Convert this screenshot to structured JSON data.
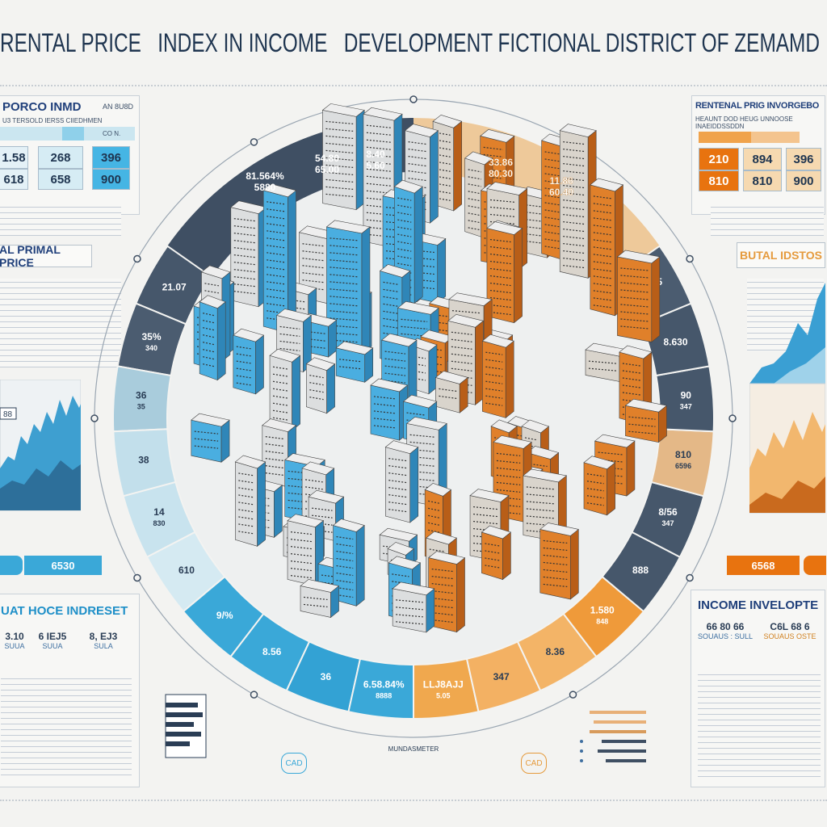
{
  "title": "RENTAL PRICE   INDEX IN INCOME   DEVELOPMENT FICTIONAL DISTRICT OF ZEMAMD",
  "colors": {
    "navy": "#3f4f63",
    "blue": "#3aa8d8",
    "light_blue": "#b9dcea",
    "orange": "#ef9a3a",
    "tan": "#e9c18c",
    "dark_orange": "#d86a1a",
    "text": "#1f3550"
  },
  "left_top_panel": {
    "title": "PORCO INMD",
    "tag": "AN 8U8D",
    "subtitle": "U3 TERSOLD IERSS CIIEDHMEN",
    "header_tag": "CO N.",
    "cells": [
      [
        "1.58",
        "618"
      ],
      [
        "268",
        "658"
      ],
      [
        "396",
        "900"
      ]
    ]
  },
  "left_mid_label": "AL PRIMAL PRICE",
  "left_chart_tag": "88",
  "left_button": "6530",
  "left_bottom_panel": {
    "title": "UAT HOCE INDRESET",
    "stats": [
      {
        "value": "3.10",
        "sub": "SUUA"
      },
      {
        "value": "6 IEJ5",
        "sub": "SUUA"
      },
      {
        "value": "8, EJ3",
        "sub": "SULA"
      }
    ]
  },
  "right_top_panel": {
    "title": "RENTENAL PRIG INVORGEBO",
    "subtitle": "HEAUNT DOD HEUG UNNOOSE INAEIDDSSDDN",
    "cells": [
      [
        "210",
        "810"
      ],
      [
        "894",
        "810"
      ],
      [
        "396",
        "900"
      ]
    ]
  },
  "right_mid_label": "BUTAL IDSTOS",
  "right_button": "6568",
  "right_bottom_panel": {
    "title": "INCOME INVELOPTE",
    "stats": [
      {
        "value": "66 80 66",
        "sub": "SOUAUS : SULL"
      },
      {
        "value": "C6L 68 6",
        "sub": "SOUAUS OSTE"
      }
    ]
  },
  "ring": {
    "left": [
      {
        "label": "21.07",
        "color": "#46576b"
      },
      {
        "label": "35%\n340",
        "color": "#4b5c70"
      },
      {
        "label": "36\n35",
        "color": "#a9ccdc"
      },
      {
        "label": "38",
        "color": "#c2dfeb"
      },
      {
        "label": "14\n830",
        "color": "#c8e3ee"
      },
      {
        "label": "610",
        "color": "#d5eaf2"
      },
      {
        "label": "9/%",
        "color": "#3aa8d8"
      },
      {
        "label": "8.56",
        "color": "#3aa8d8"
      },
      {
        "label": "36",
        "color": "#33a2d4"
      },
      {
        "label": "6.58.84%\n8888",
        "color": "#3aa8d8"
      }
    ],
    "right": [
      {
        "label": "LLJ8AJJ\n5.05",
        "color": "#f0a84e"
      },
      {
        "label": "347",
        "color": "#f3b163"
      },
      {
        "label": "8.36",
        "color": "#f3b467"
      },
      {
        "label": "1.580\n848",
        "color": "#ef9a3a"
      },
      {
        "label": "888",
        "color": "#46576b"
      },
      {
        "label": "8/56\n347",
        "color": "#46576b"
      },
      {
        "label": "810\n6596",
        "color": "#e4b887"
      },
      {
        "label": "90\n347",
        "color": "#46576b"
      },
      {
        "label": "8.630",
        "color": "#46576b"
      },
      {
        "label": "8.35\n5.35",
        "color": "#4b5c70"
      }
    ],
    "top_labels": [
      "81.564%\n5880",
      "54.80\n65.00",
      "8.40\n5.60",
      "33.86\n80.30",
      "11.86\n60.40"
    ],
    "bottom_caption": "MUNDASMETER"
  },
  "bottom_pills": [
    "CAD",
    "CAD"
  ]
}
